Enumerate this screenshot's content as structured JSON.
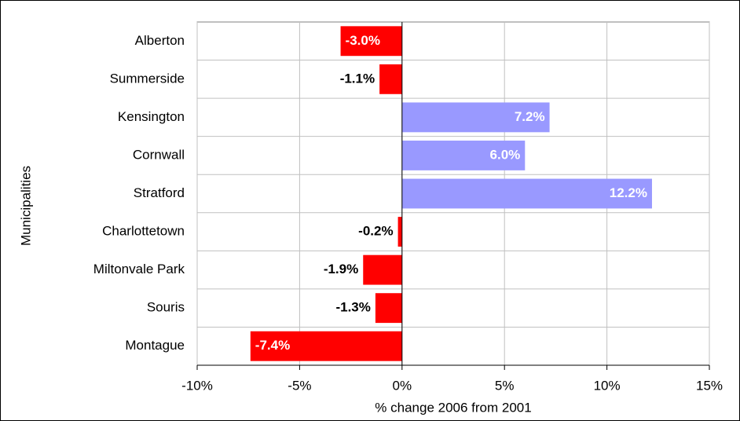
{
  "chart_data": {
    "type": "barh",
    "xlabel": "% change 2006 from 2001",
    "ylabel": "Municipalities",
    "categories": [
      "Alberton",
      "Summerside",
      "Kensington",
      "Cornwall",
      "Stratford",
      "Charlottetown",
      "Miltonvale Park",
      "Souris",
      "Montague"
    ],
    "values": [
      -3.0,
      -1.1,
      7.2,
      6.0,
      12.2,
      -0.2,
      -1.9,
      -1.3,
      -7.4
    ],
    "value_labels": [
      "-3.0%",
      "-1.1%",
      "7.2%",
      "6.0%",
      "12.2%",
      "-0.2%",
      "-1.9%",
      "-1.3%",
      "-7.4%"
    ],
    "colors": [
      "#ff0000",
      "#ff0000",
      "#9999ff",
      "#9999ff",
      "#9999ff",
      "#ff0000",
      "#ff0000",
      "#ff0000",
      "#ff0000"
    ],
    "xlim": [
      -10,
      15
    ],
    "xticks": [
      {
        "value": -10,
        "label": "-10%"
      },
      {
        "value": -5,
        "label": "-5%"
      },
      {
        "value": 0,
        "label": "0%"
      },
      {
        "value": 5,
        "label": "5%"
      },
      {
        "value": 10,
        "label": "10%"
      },
      {
        "value": 15,
        "label": "15%"
      }
    ],
    "grid": true
  }
}
